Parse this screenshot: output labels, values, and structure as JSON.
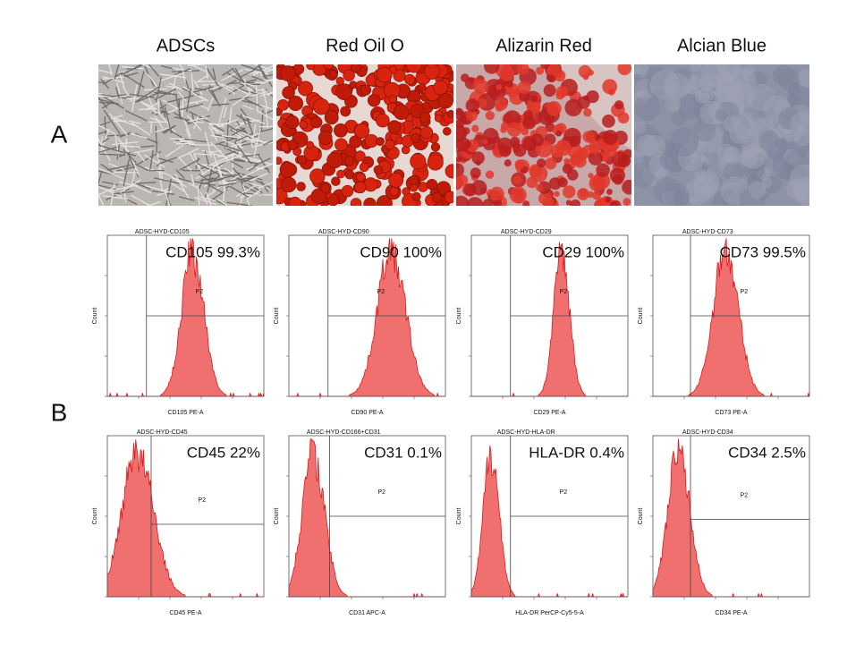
{
  "panel_labels": [
    "A",
    "B"
  ],
  "columns": [
    {
      "title": "ADSCs"
    },
    {
      "title": "Red Oil O"
    },
    {
      "title": "Alizarin Red"
    },
    {
      "title": "Alcian Blue"
    }
  ],
  "histograms": [
    {
      "title": "ADSC-HYD-CD105",
      "annotation": "CD105 99.3%",
      "gate": "P2",
      "y_label": "Count",
      "x_label": "CD105 PE-A"
    },
    {
      "title": "ADSC-HYD-CD90",
      "annotation": "CD90 100%",
      "gate": "P2",
      "y_label": "Count",
      "x_label": "CD90 PE-A"
    },
    {
      "title": "ADSC-HYD-CD29",
      "annotation": "CD29 100%",
      "gate": "P2",
      "y_label": "Count",
      "x_label": "CD29 PE-A"
    },
    {
      "title": "ADSC-HYD-CD73",
      "annotation": "CD73 99.5%",
      "gate": "P2",
      "y_label": "Count",
      "x_label": "CD73 PE-A"
    },
    {
      "title": "ADSC-HYD-CD45",
      "annotation": "CD45 22%",
      "gate": "P2",
      "y_label": "Count",
      "x_label": "CD45 PE-A"
    },
    {
      "title": "ADSC-HYD-CD166+CD31",
      "annotation": "CD31 0.1%",
      "gate": "P2",
      "y_label": "Count",
      "x_label": "CD31 APC-A"
    },
    {
      "title": "ADSC-HYD-HLA-DR",
      "annotation": "HLA-DR 0.4%",
      "gate": "P2",
      "y_label": "Count",
      "x_label": "HLA-DR PerCP-Cy5-5-A"
    },
    {
      "title": "ADSC-HYD-CD34",
      "annotation": "CD34 2.5%",
      "gate": "P2",
      "y_label": "Count",
      "x_label": "CD34 PE-A"
    }
  ]
}
